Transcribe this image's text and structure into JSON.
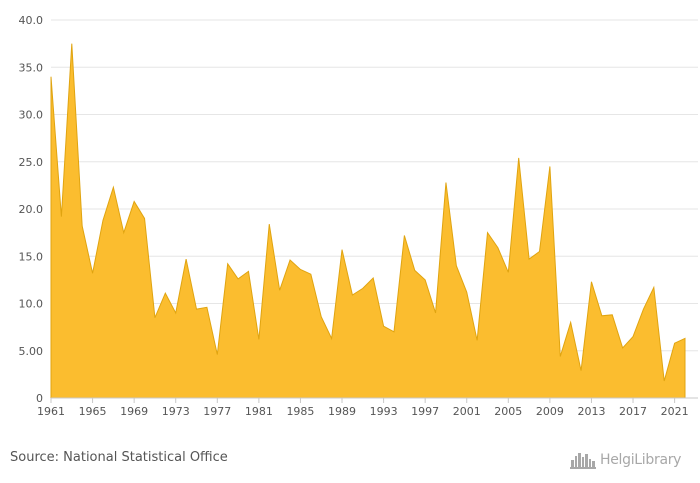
{
  "chart_data": {
    "type": "area",
    "x": [
      1961,
      1962,
      1963,
      1964,
      1965,
      1966,
      1967,
      1968,
      1969,
      1970,
      1971,
      1972,
      1973,
      1974,
      1975,
      1976,
      1977,
      1978,
      1979,
      1980,
      1981,
      1982,
      1983,
      1984,
      1985,
      1986,
      1987,
      1988,
      1989,
      1990,
      1991,
      1992,
      1993,
      1994,
      1995,
      1996,
      1997,
      1998,
      1999,
      2000,
      2001,
      2002,
      2003,
      2004,
      2005,
      2006,
      2007,
      2008,
      2009,
      2010,
      2011,
      2012,
      2013,
      2014,
      2015,
      2016,
      2017,
      2018,
      2019,
      2020,
      2021,
      2022
    ],
    "values": [
      34.0,
      19.2,
      37.5,
      18.2,
      13.2,
      18.8,
      22.3,
      17.5,
      20.8,
      19.0,
      8.5,
      11.1,
      9.0,
      14.7,
      9.4,
      9.6,
      4.6,
      14.2,
      12.6,
      13.4,
      6.2,
      18.4,
      11.4,
      14.6,
      13.6,
      13.1,
      8.6,
      6.3,
      15.7,
      10.9,
      11.6,
      12.7,
      7.6,
      7.0,
      17.2,
      13.5,
      12.5,
      9.0,
      22.8,
      14.0,
      11.2,
      6.1,
      17.5,
      15.9,
      13.3,
      25.4,
      14.7,
      15.5,
      24.5,
      4.4,
      8.0,
      2.9,
      12.3,
      8.7,
      8.8,
      5.3,
      6.5,
      9.4,
      11.7,
      1.8,
      5.8,
      6.3
    ],
    "x_ticks": [
      "1961",
      "1965",
      "1969",
      "1973",
      "1977",
      "1981",
      "1985",
      "1989",
      "1993",
      "1997",
      "2001",
      "2005",
      "2009",
      "2013",
      "2017",
      "2021"
    ],
    "y_ticks": [
      "0",
      "5.00",
      "10.0",
      "15.0",
      "20.0",
      "25.0",
      "30.0",
      "35.0",
      "40.0"
    ],
    "ylim": [
      0,
      40
    ],
    "xlim": [
      1961,
      2022
    ],
    "grid": true,
    "legend": "none",
    "title": "",
    "xlabel": "",
    "ylabel": "",
    "fill_color": "#fbbd2f",
    "stroke_color": "#e0a410"
  },
  "footer": {
    "source": "Source: National Statistical Office",
    "brand": "HelgiLibrary",
    "brand_icon": "skyline-logo-icon"
  }
}
